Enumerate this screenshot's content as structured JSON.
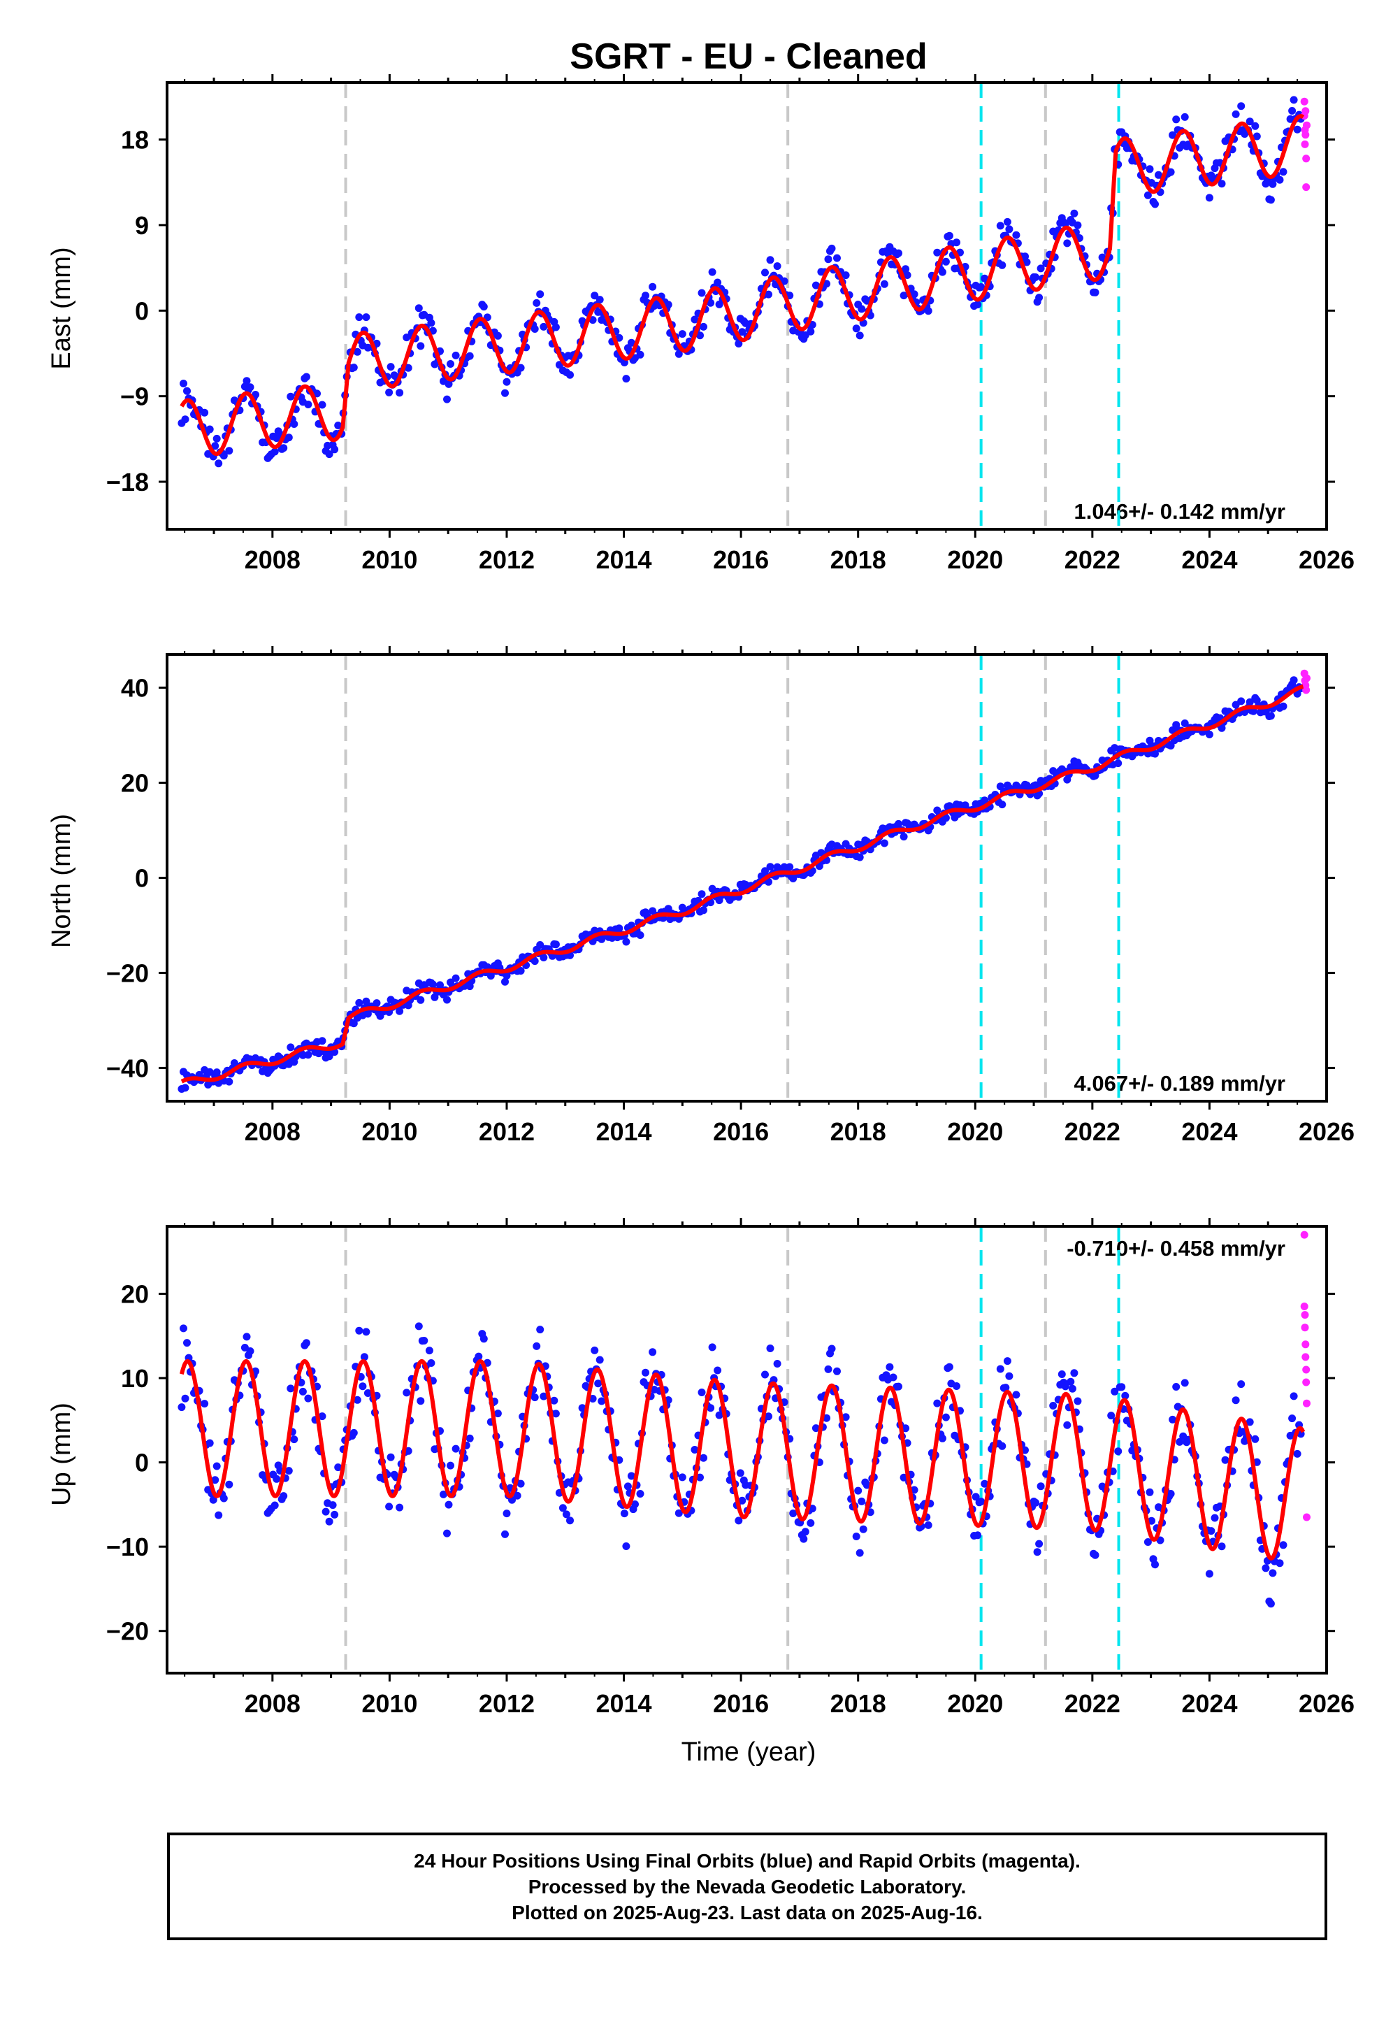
{
  "title": "SGRT  - EU - Cleaned",
  "xlabel": "Time (year)",
  "caption": [
    "24 Hour Positions Using Final Orbits (blue) and Rapid Orbits (magenta).",
    "Processed by the Nevada Geodetic Laboratory.",
    "Plotted on 2025-Aug-23. Last data on 2025-Aug-16."
  ],
  "colors": {
    "final_orbits": "#1414ff",
    "rapid_orbits": "#ff22ff",
    "model_fit": "#ff0000",
    "cyan_marker": "#00e5ee",
    "gray_marker": "#c8c8c8"
  },
  "chart_data": [
    {
      "type": "scatter",
      "component": "east",
      "ylabel": "East (mm)",
      "rate_label": "1.046+/- 0.142 mm/yr",
      "xlim": [
        2006.2,
        2026.0
      ],
      "ylim": [
        -23,
        24
      ],
      "xticks": [
        2008,
        2010,
        2012,
        2014,
        2016,
        2018,
        2020,
        2022,
        2024,
        2026
      ],
      "yticks": [
        -18,
        -9,
        0,
        9,
        18
      ],
      "gray_event_lines": [
        2009.25,
        2016.8,
        2021.2
      ],
      "cyan_event_lines": [
        2020.1,
        2022.45
      ],
      "series": [
        {
          "style": "scatter",
          "start": 2006.45,
          "end": 2025.58,
          "step": 0.03,
          "trend_points": [
            [
              2006.45,
              -12.5
            ],
            [
              2009.2,
              -10.5
            ],
            [
              2009.3,
              -5.5
            ],
            [
              2014.8,
              -1.5
            ],
            [
              2017.0,
              1.0
            ],
            [
              2022.3,
              6.5
            ],
            [
              2022.4,
              15.0
            ],
            [
              2025.6,
              17.5
            ]
          ],
          "amplitude": 3.0,
          "scatter": 1.8
        },
        {
          "style": "scatter",
          "x": [
            2025.62,
            2025.62,
            2025.63,
            2025.63,
            2025.64,
            2025.64,
            2025.65,
            2025.65,
            2025.66
          ],
          "y": [
            22.0,
            20.5,
            19.0,
            17.5,
            21.0,
            18.5,
            16.0,
            13.0,
            19.5
          ]
        },
        {
          "style": "line",
          "start": 2006.45,
          "end": 2025.6,
          "step": 0.01,
          "trend_points": [
            [
              2006.45,
              -12.5
            ],
            [
              2009.2,
              -10.5
            ],
            [
              2009.3,
              -5.5
            ],
            [
              2014.8,
              -1.5
            ],
            [
              2017.0,
              1.0
            ],
            [
              2022.3,
              6.5
            ],
            [
              2022.4,
              15.0
            ],
            [
              2025.6,
              17.5
            ]
          ],
          "amplitude": 3.0
        }
      ]
    },
    {
      "type": "scatter",
      "component": "north",
      "ylabel": "North (mm)",
      "rate_label": "4.067+/- 0.189 mm/yr",
      "xlim": [
        2006.2,
        2026.0
      ],
      "ylim": [
        -47,
        47
      ],
      "xticks": [
        2008,
        2010,
        2012,
        2014,
        2016,
        2018,
        2020,
        2022,
        2024,
        2026
      ],
      "yticks": [
        -40,
        -20,
        0,
        20,
        40
      ],
      "gray_event_lines": [
        2009.25,
        2016.8,
        2021.2
      ],
      "cyan_event_lines": [
        2020.1,
        2022.45
      ],
      "series": [
        {
          "style": "scatter",
          "start": 2006.45,
          "end": 2025.58,
          "step": 0.03,
          "trend_points": [
            [
              2006.45,
              -43.5
            ],
            [
              2009.2,
              -34.5
            ],
            [
              2009.3,
              -29.5
            ],
            [
              2015.0,
              -7.0
            ],
            [
              2016.0,
              -2.5
            ],
            [
              2019.0,
              11.0
            ],
            [
              2021.5,
              21.0
            ],
            [
              2025.6,
              39.5
            ]
          ],
          "amplitude": 0.8,
          "scatter": 1.6
        },
        {
          "style": "scatter",
          "x": [
            2025.62,
            2025.63,
            2025.64,
            2025.65,
            2025.66
          ],
          "y": [
            43.0,
            41.5,
            40.5,
            39.5,
            42.0
          ]
        },
        {
          "style": "line",
          "start": 2006.45,
          "end": 2025.6,
          "step": 0.01,
          "trend_points": [
            [
              2006.45,
              -43.5
            ],
            [
              2009.2,
              -34.5
            ],
            [
              2009.3,
              -29.5
            ],
            [
              2015.0,
              -7.0
            ],
            [
              2016.0,
              -2.5
            ],
            [
              2019.0,
              11.0
            ],
            [
              2021.5,
              21.0
            ],
            [
              2025.6,
              39.5
            ]
          ],
          "amplitude": 0.8
        }
      ]
    },
    {
      "type": "scatter",
      "component": "up",
      "ylabel": "Up (mm)",
      "xlabel": "Time (year)",
      "rate_label": "-0.710+/- 0.458 mm/yr",
      "xlim": [
        2006.2,
        2026.0
      ],
      "ylim": [
        -25,
        28
      ],
      "xticks": [
        2008,
        2010,
        2012,
        2014,
        2016,
        2018,
        2020,
        2022,
        2024,
        2026
      ],
      "yticks": [
        -20,
        -10,
        0,
        10,
        20
      ],
      "gray_event_lines": [
        2009.25,
        2016.8,
        2021.2
      ],
      "cyan_event_lines": [
        2020.1,
        2022.45
      ],
      "series": [
        {
          "style": "scatter",
          "start": 2006.45,
          "end": 2025.58,
          "step": 0.03,
          "trend_points": [
            [
              2006.45,
              4.0
            ],
            [
              2012.0,
              4.0
            ],
            [
              2016.0,
              1.5
            ],
            [
              2020.0,
              0.5
            ],
            [
              2022.0,
              0.0
            ],
            [
              2025.6,
              -4.0
            ]
          ],
          "amplitude": 8.0,
          "scatter": 4.0
        },
        {
          "style": "scatter",
          "x": [
            2025.62,
            2025.62,
            2025.63,
            2025.63,
            2025.64,
            2025.64,
            2025.65,
            2025.65,
            2025.66,
            2025.66
          ],
          "y": [
            27.0,
            18.5,
            17.5,
            16.0,
            14.0,
            12.5,
            11.0,
            9.5,
            7.0,
            -6.5
          ]
        },
        {
          "style": "line",
          "start": 2006.45,
          "end": 2025.6,
          "step": 0.01,
          "trend_points": [
            [
              2006.45,
              4.0
            ],
            [
              2012.0,
              4.0
            ],
            [
              2016.0,
              1.5
            ],
            [
              2020.0,
              0.5
            ],
            [
              2022.0,
              0.0
            ],
            [
              2025.6,
              -4.0
            ]
          ],
          "amplitude": 8.0
        }
      ]
    }
  ]
}
